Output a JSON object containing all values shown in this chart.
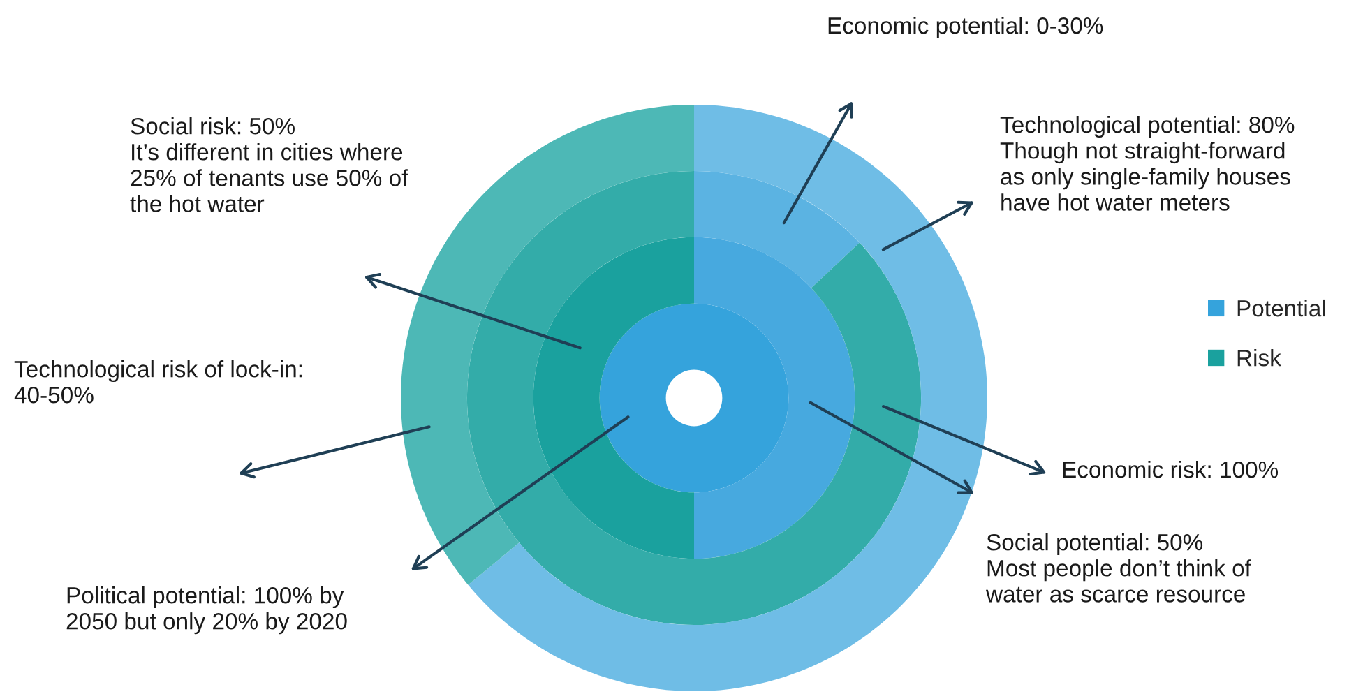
{
  "chart_data": {
    "type": "donut",
    "categories": [
      "Potential",
      "Risk"
    ],
    "series": [
      {
        "values": [
          100,
          0
        ],
        "colors": [
          "#35a3dc",
          "#1aa19e"
        ]
      },
      {
        "values": [
          50,
          50
        ],
        "colors": [
          "#47a9df",
          "#1aa19e"
        ]
      },
      {
        "values": [
          13,
          87
        ],
        "colors": [
          "#5bb3e2",
          "#33aca9"
        ]
      },
      {
        "values": [
          64,
          36
        ],
        "colors": [
          "#6fbde6",
          "#4db8b6"
        ]
      }
    ],
    "legend": "right",
    "annotations": [
      "Economic potential: 0-30%",
      "Technological potential: 80%\nThough not straight-forward\nas only single-family houses\nhave hot water meters",
      "Economic risk: 100%",
      "Social potential: 50%\nMost people don’t think of\nwater as scarce resource",
      "Political potential: 100% by\n2050 but only 20% by 2020",
      "Technological risk of lock-in:\n40-50%",
      "Social risk: 50%\nIt’s different in cities where\n25% of tenants use 50% of\nthe hot water"
    ]
  }
}
